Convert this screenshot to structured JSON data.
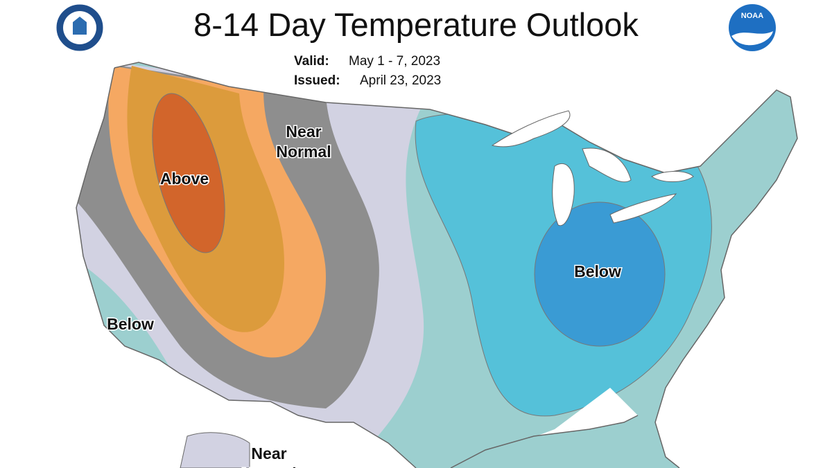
{
  "header": {
    "title": "8-14 Day Temperature Outlook",
    "valid_label": "Valid:",
    "valid": "May 1 - 7, 2023",
    "issued_label": "Issued:",
    "issued": "April 23, 2023"
  },
  "logos": {
    "noaa": "NOAA"
  },
  "regions": [
    {
      "lines": [
        "Near",
        "Normal"
      ]
    },
    {
      "lines": [
        "Above"
      ]
    },
    {
      "lines": [
        "Below"
      ]
    },
    {
      "lines": [
        "Below"
      ]
    },
    {
      "lines": [
        "Near",
        "Normal"
      ]
    }
  ]
}
